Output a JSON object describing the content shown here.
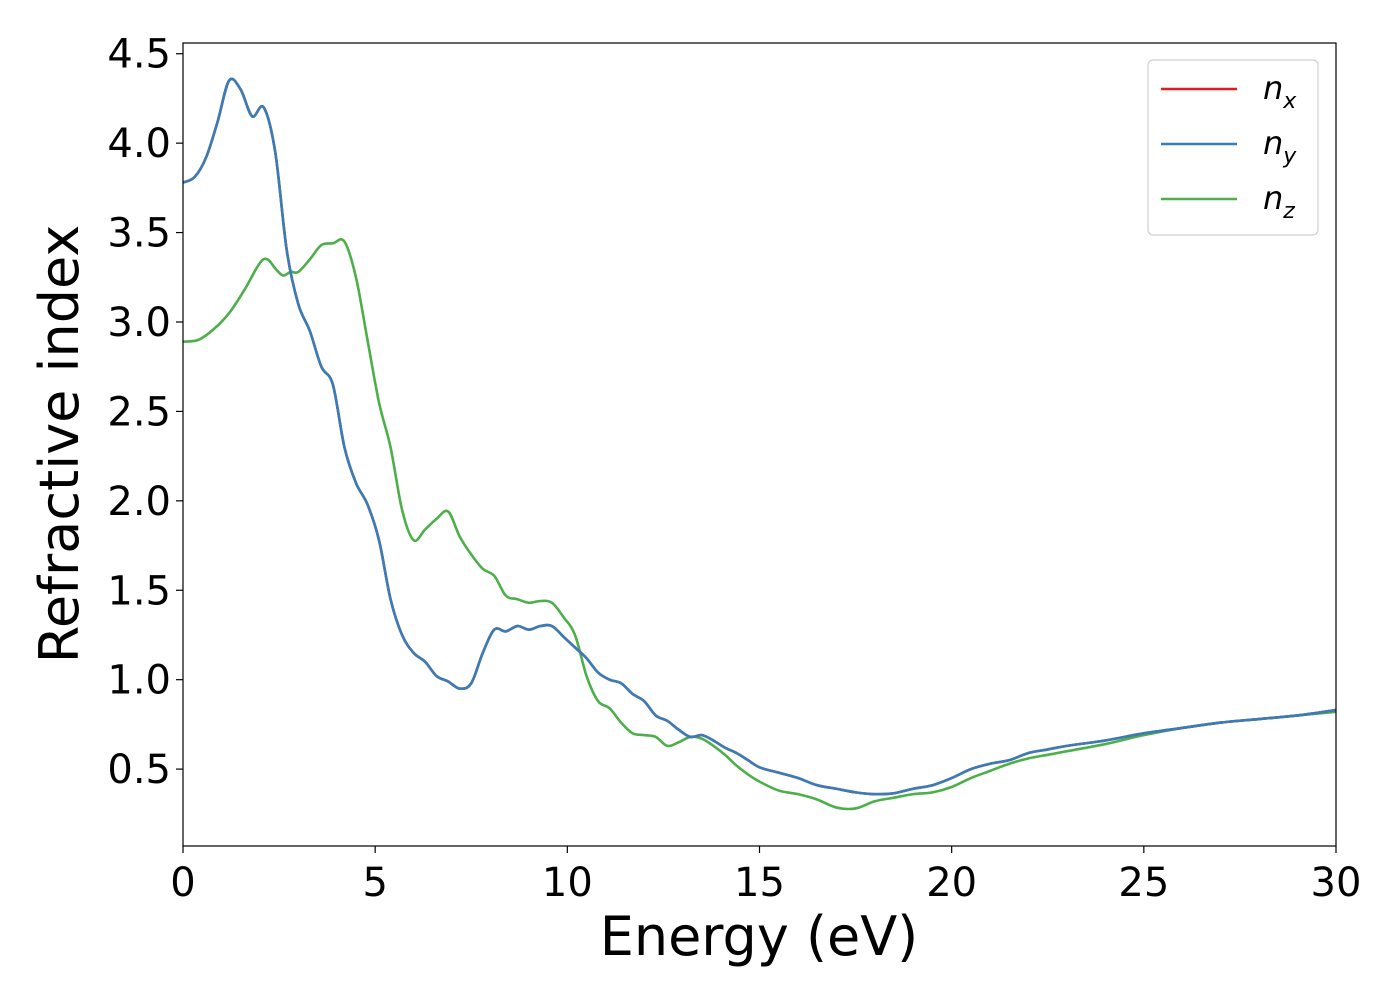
{
  "chart_data": {
    "type": "line",
    "title": "",
    "xlabel": "Energy (eV)",
    "ylabel": "Refractive index",
    "xlim": [
      0,
      30
    ],
    "ylim": [
      0.07,
      4.56
    ],
    "xticks": [
      0,
      5,
      10,
      15,
      20,
      25,
      30
    ],
    "xtick_labels": [
      "0",
      "5",
      "10",
      "15",
      "20",
      "25",
      "30"
    ],
    "yticks": [
      0.5,
      1.0,
      1.5,
      2.0,
      2.5,
      3.0,
      3.5,
      4.0,
      4.5
    ],
    "ytick_labels": [
      "0.5",
      "1.0",
      "1.5",
      "2.0",
      "2.5",
      "3.0",
      "3.5",
      "4.0",
      "4.5"
    ],
    "grid": false,
    "legend": {
      "position": "top-right",
      "entries": [
        {
          "base": "n",
          "sub": "x",
          "color": "#e41a1c"
        },
        {
          "base": "n",
          "sub": "y",
          "color": "#377eb8"
        },
        {
          "base": "n",
          "sub": "z",
          "color": "#4daf4a"
        }
      ]
    },
    "series": [
      {
        "name": "n_x",
        "color": "#e41a1c",
        "x": [
          0,
          0.3,
          0.6,
          0.9,
          1.2,
          1.5,
          1.8,
          2.1,
          2.4,
          2.7,
          3.0,
          3.3,
          3.6,
          3.9,
          4.2,
          4.5,
          4.8,
          5.1,
          5.4,
          5.7,
          6.0,
          6.3,
          6.6,
          6.9,
          7.2,
          7.5,
          7.8,
          8.1,
          8.4,
          8.7,
          9.0,
          9.3,
          9.6,
          9.9,
          10.2,
          10.5,
          10.8,
          11.1,
          11.4,
          11.7,
          12.0,
          12.3,
          12.6,
          12.9,
          13.2,
          13.5,
          13.8,
          14.1,
          14.4,
          14.7,
          15.0,
          15.5,
          16.0,
          16.5,
          17.0,
          17.5,
          18.0,
          18.5,
          19.0,
          19.5,
          20.0,
          20.5,
          21.0,
          21.5,
          22.0,
          22.5,
          23.0,
          24.0,
          25.0,
          26.0,
          27.0,
          28.0,
          29.0,
          30.0
        ],
        "y": [
          3.78,
          3.81,
          3.92,
          4.12,
          4.35,
          4.3,
          4.15,
          4.2,
          3.95,
          3.4,
          3.1,
          2.95,
          2.75,
          2.65,
          2.3,
          2.1,
          1.98,
          1.78,
          1.45,
          1.25,
          1.15,
          1.1,
          1.02,
          0.99,
          0.95,
          0.98,
          1.15,
          1.28,
          1.27,
          1.3,
          1.28,
          1.3,
          1.3,
          1.24,
          1.18,
          1.12,
          1.04,
          1.0,
          0.98,
          0.92,
          0.88,
          0.8,
          0.77,
          0.72,
          0.68,
          0.69,
          0.66,
          0.62,
          0.59,
          0.55,
          0.51,
          0.48,
          0.45,
          0.41,
          0.39,
          0.37,
          0.36,
          0.365,
          0.39,
          0.41,
          0.45,
          0.5,
          0.53,
          0.55,
          0.59,
          0.61,
          0.63,
          0.66,
          0.7,
          0.73,
          0.76,
          0.78,
          0.8,
          0.83
        ]
      },
      {
        "name": "n_y",
        "color": "#377eb8",
        "x": [
          0,
          0.3,
          0.6,
          0.9,
          1.2,
          1.5,
          1.8,
          2.1,
          2.4,
          2.7,
          3.0,
          3.3,
          3.6,
          3.9,
          4.2,
          4.5,
          4.8,
          5.1,
          5.4,
          5.7,
          6.0,
          6.3,
          6.6,
          6.9,
          7.2,
          7.5,
          7.8,
          8.1,
          8.4,
          8.7,
          9.0,
          9.3,
          9.6,
          9.9,
          10.2,
          10.5,
          10.8,
          11.1,
          11.4,
          11.7,
          12.0,
          12.3,
          12.6,
          12.9,
          13.2,
          13.5,
          13.8,
          14.1,
          14.4,
          14.7,
          15.0,
          15.5,
          16.0,
          16.5,
          17.0,
          17.5,
          18.0,
          18.5,
          19.0,
          19.5,
          20.0,
          20.5,
          21.0,
          21.5,
          22.0,
          22.5,
          23.0,
          24.0,
          25.0,
          26.0,
          27.0,
          28.0,
          29.0,
          30.0
        ],
        "y": [
          3.78,
          3.81,
          3.92,
          4.12,
          4.35,
          4.3,
          4.15,
          4.2,
          3.95,
          3.4,
          3.1,
          2.95,
          2.75,
          2.65,
          2.3,
          2.1,
          1.98,
          1.78,
          1.45,
          1.25,
          1.15,
          1.1,
          1.02,
          0.99,
          0.95,
          0.98,
          1.15,
          1.28,
          1.27,
          1.3,
          1.28,
          1.3,
          1.3,
          1.24,
          1.18,
          1.12,
          1.04,
          1.0,
          0.98,
          0.92,
          0.88,
          0.8,
          0.77,
          0.72,
          0.68,
          0.69,
          0.66,
          0.62,
          0.59,
          0.55,
          0.51,
          0.48,
          0.45,
          0.41,
          0.39,
          0.37,
          0.36,
          0.365,
          0.39,
          0.41,
          0.45,
          0.5,
          0.53,
          0.55,
          0.59,
          0.61,
          0.63,
          0.66,
          0.7,
          0.73,
          0.76,
          0.78,
          0.8,
          0.83
        ]
      },
      {
        "name": "n_z",
        "color": "#4daf4a",
        "x": [
          0,
          0.4,
          0.8,
          1.2,
          1.6,
          2.0,
          2.2,
          2.4,
          2.6,
          2.8,
          3.0,
          3.3,
          3.6,
          3.9,
          4.2,
          4.5,
          4.8,
          5.1,
          5.4,
          5.7,
          6.0,
          6.3,
          6.6,
          6.9,
          7.2,
          7.5,
          7.8,
          8.1,
          8.4,
          8.7,
          9.0,
          9.3,
          9.6,
          9.9,
          10.2,
          10.5,
          10.8,
          11.1,
          11.4,
          11.7,
          12.0,
          12.3,
          12.6,
          12.9,
          13.2,
          13.5,
          13.8,
          14.1,
          14.4,
          14.7,
          15.0,
          15.5,
          16.0,
          16.5,
          17.0,
          17.5,
          18.0,
          18.5,
          19.0,
          19.5,
          20.0,
          20.5,
          21.0,
          21.5,
          22.0,
          22.5,
          23.0,
          24.0,
          25.0,
          26.0,
          27.0,
          28.0,
          29.0,
          30.0
        ],
        "y": [
          2.89,
          2.9,
          2.96,
          3.05,
          3.18,
          3.33,
          3.35,
          3.3,
          3.26,
          3.28,
          3.28,
          3.35,
          3.43,
          3.44,
          3.45,
          3.25,
          2.9,
          2.55,
          2.3,
          1.95,
          1.78,
          1.84,
          1.9,
          1.94,
          1.8,
          1.7,
          1.62,
          1.58,
          1.47,
          1.45,
          1.43,
          1.44,
          1.43,
          1.35,
          1.25,
          1.02,
          0.88,
          0.84,
          0.76,
          0.7,
          0.69,
          0.68,
          0.63,
          0.65,
          0.68,
          0.67,
          0.63,
          0.58,
          0.52,
          0.47,
          0.43,
          0.38,
          0.36,
          0.33,
          0.285,
          0.28,
          0.32,
          0.34,
          0.36,
          0.37,
          0.4,
          0.45,
          0.49,
          0.53,
          0.56,
          0.58,
          0.6,
          0.64,
          0.69,
          0.73,
          0.76,
          0.78,
          0.8,
          0.82
        ]
      }
    ]
  }
}
